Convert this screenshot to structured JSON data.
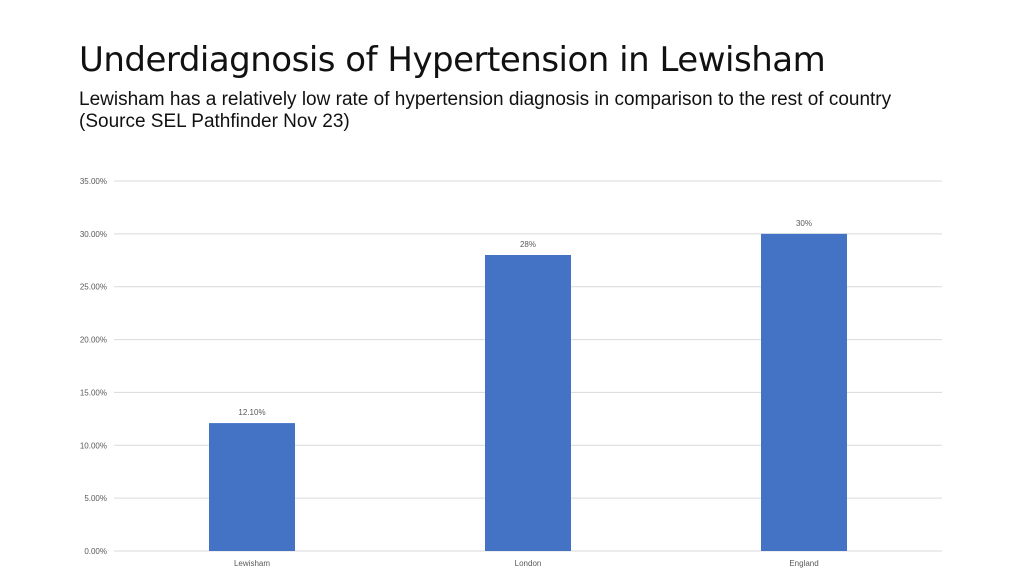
{
  "slide": {
    "title": "Underdiagnosis of Hypertension in Lewisham",
    "subtitle": "Lewisham has a relatively low rate of hypertension diagnosis in comparison to the rest of country (Source SEL Pathfinder Nov 23)"
  },
  "chart_data": {
    "type": "bar",
    "categories": [
      "Lewisham",
      "London",
      "England"
    ],
    "values": [
      0.121,
      0.28,
      0.3
    ],
    "data_labels": [
      "12.10%",
      "28%",
      "30%"
    ],
    "bar_color": "#4472C4",
    "ylim": [
      0,
      0.35
    ],
    "y_ticks": [
      0,
      0.05,
      0.1,
      0.15,
      0.2,
      0.25,
      0.3,
      0.35
    ],
    "y_tick_labels": [
      "0.00%",
      "5.00%",
      "10.00%",
      "15.00%",
      "20.00%",
      "25.00%",
      "30.00%",
      "35.00%"
    ],
    "grid": true,
    "legend": "none"
  }
}
